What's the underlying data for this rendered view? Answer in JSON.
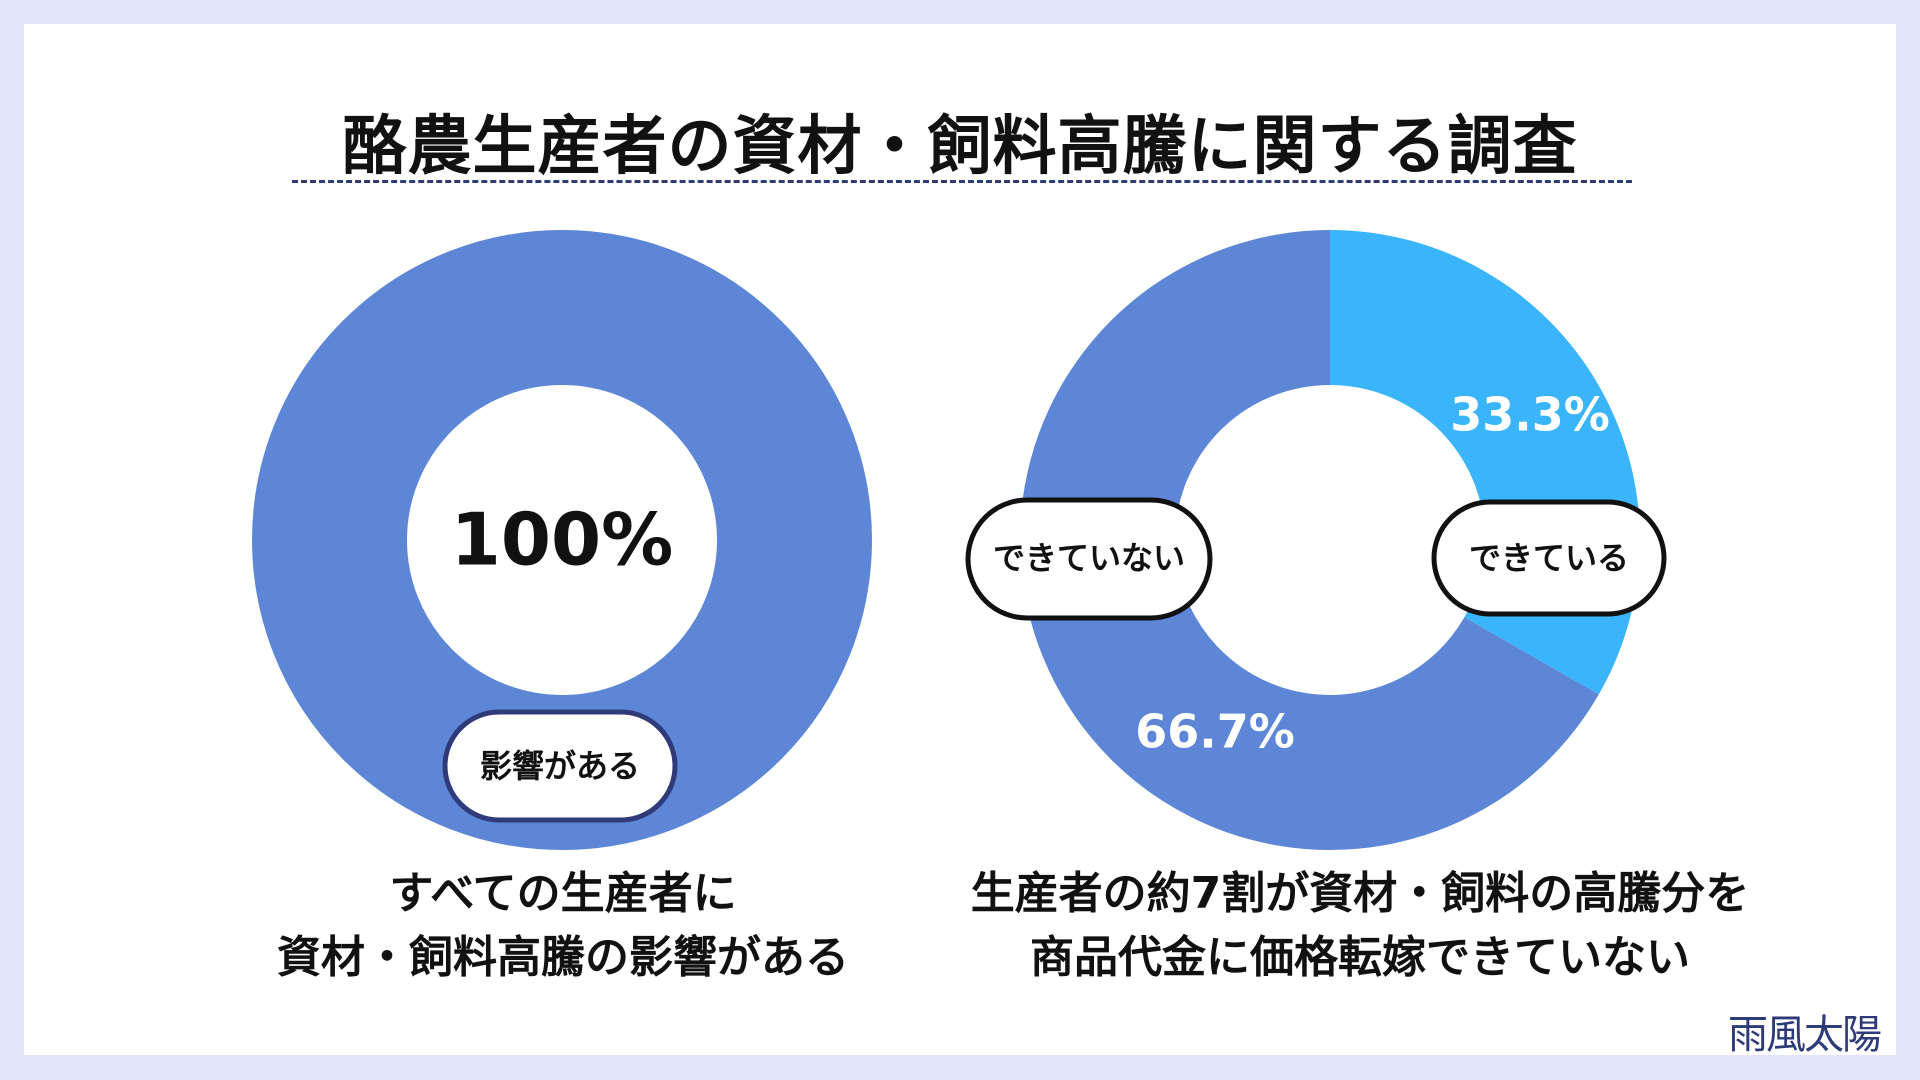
{
  "title": "酪農生産者の資材・飼料高騰に関する調査",
  "colors": {
    "dark": "#2f3a78",
    "blue": "#5d87d6",
    "light_blue": "#3ab4fb"
  },
  "chart_data": [
    {
      "type": "pie",
      "series": [
        {
          "name": "影響がある",
          "value": 100,
          "label": "100%",
          "color": "#5d87d6"
        }
      ],
      "caption_lines": [
        "すべての生産者に",
        "資材・飼料高騰の影響がある"
      ]
    },
    {
      "type": "pie",
      "series": [
        {
          "name": "できている",
          "value": 33.3,
          "label": "33.3%",
          "color": "#3ab4fb"
        },
        {
          "name": "できていない",
          "value": 66.7,
          "label": "66.7%",
          "color": "#5d87d6"
        }
      ],
      "caption_lines": [
        "生産者の約7割が資材・飼料の高騰分を",
        "商品代金に価格転嫁できていない"
      ]
    }
  ],
  "logo": "雨風太陽"
}
